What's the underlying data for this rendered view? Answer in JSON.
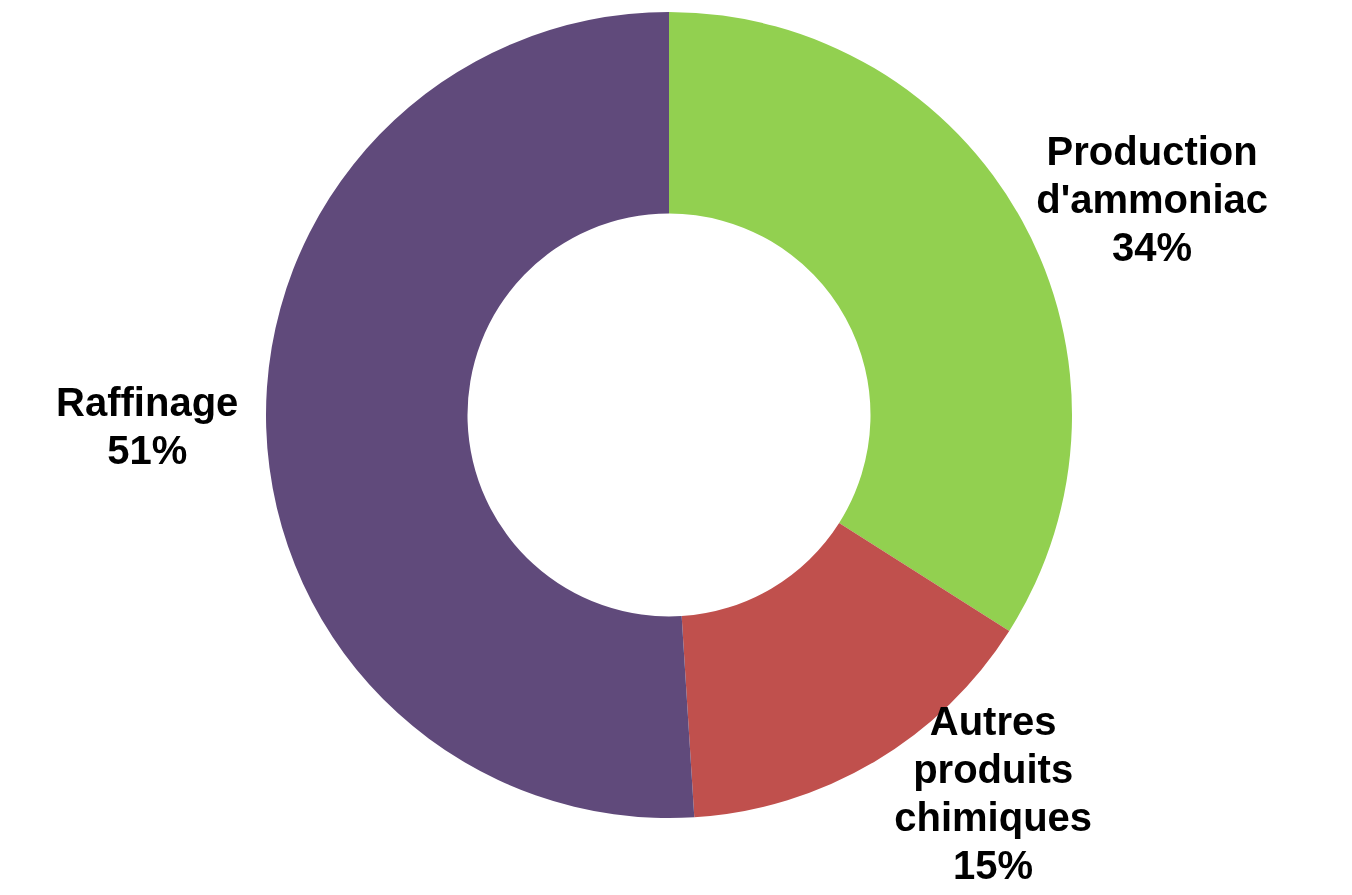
{
  "chart_data": {
    "type": "donut",
    "categories": [
      "Production d'ammoniac",
      "Autres produits chimiques",
      "Raffinage"
    ],
    "values": [
      34,
      15,
      51
    ],
    "value_labels": [
      "34%",
      "15%",
      "51%"
    ],
    "colors": [
      "#92d050",
      "#c0504d",
      "#604a7b"
    ]
  }
}
